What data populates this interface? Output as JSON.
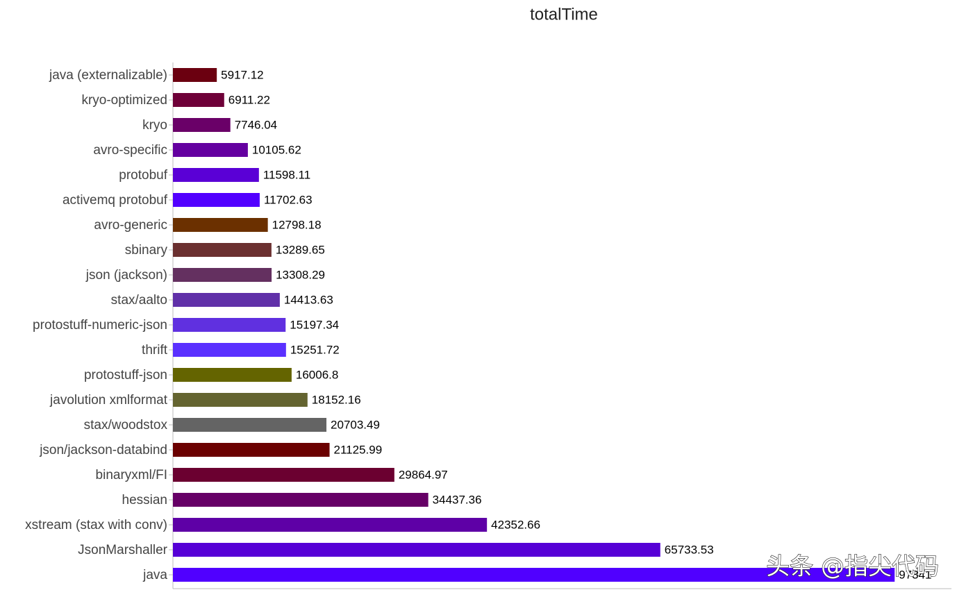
{
  "chart_data": {
    "type": "barh",
    "title": "totalTime",
    "categories": [
      "java (externalizable)",
      "kryo-optimized",
      "kryo",
      "avro-specific",
      "protobuf",
      "activemq protobuf",
      "avro-generic",
      "sbinary",
      "json (jackson)",
      "stax/aalto",
      "protostuff-numeric-json",
      "thrift",
      "protostuff-json",
      "javolution xmlformat",
      "stax/woodstox",
      "json/jackson-databind",
      "binaryxml/FI",
      "hessian",
      "xstream (stax with conv)",
      "JsonMarshaller",
      "java"
    ],
    "values": [
      5917.12,
      6911.22,
      7746.04,
      10105.62,
      11598.11,
      11702.63,
      12798.18,
      13289.65,
      13308.29,
      14413.63,
      15197.34,
      15251.72,
      16006.8,
      18152.16,
      20703.49,
      21125.99,
      29864.97,
      34437.36,
      42352.66,
      65733.53,
      97341
    ],
    "colors": [
      "#6b0010",
      "#6e0038",
      "#6a0068",
      "#6400a0",
      "#5a00d6",
      "#5200ff",
      "#6b3000",
      "#6b3030",
      "#643060",
      "#6030a8",
      "#6030e0",
      "#5a30ff",
      "#646400",
      "#646430",
      "#646464",
      "#6b0000",
      "#6b0030",
      "#660066",
      "#5e00a6",
      "#5600d6",
      "#5000ff"
    ],
    "xlim": [
      0,
      105000
    ]
  },
  "watermark": "头条 @指尖代码"
}
